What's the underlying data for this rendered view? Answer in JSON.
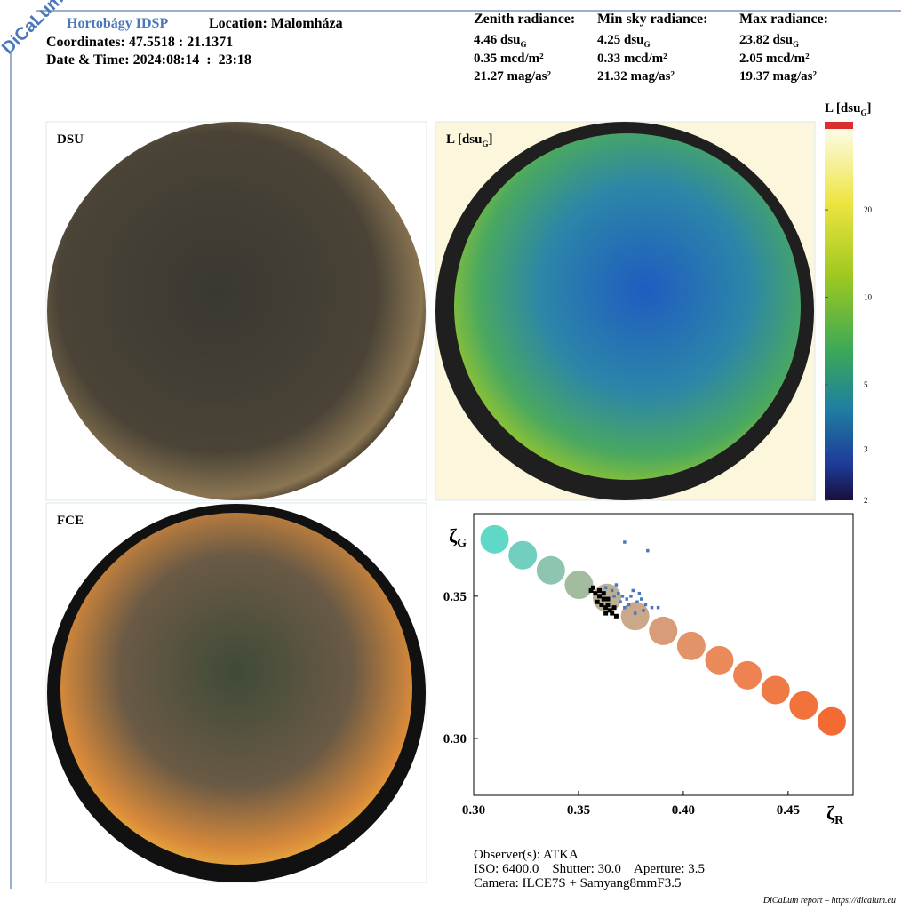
{
  "header": {
    "brand": "DiCaLum",
    "site": "Hortobágy IDSP",
    "location": "Location: Malomháza",
    "coordinates": "Coordinates: 47.5518 : 21.1371",
    "datetime": "Date & Time: 2024:08:14  :  23:18"
  },
  "radiance": [
    {
      "title": "Zenith radiance:",
      "dsu": "4.46 dsu",
      "dsu_sub": "G",
      "mcd": "0.35 mcd/m²",
      "mag": "21.27 mag/as²"
    },
    {
      "title": "Min sky radiance:",
      "dsu": "4.25 dsu",
      "dsu_sub": "G",
      "mcd": "0.33 mcd/m²",
      "mag": "21.32 mag/as²"
    },
    {
      "title": "Max radiance:",
      "dsu": "23.82 dsu",
      "dsu_sub": "G",
      "mcd": "2.05 mcd/m²",
      "mag": "19.37 mag/as²"
    }
  ],
  "panels": {
    "dsu": "DSU",
    "lmap": [
      "L [dsu",
      "G",
      "]"
    ],
    "fce": "FCE"
  },
  "chart_data": [
    {
      "type": "colorbar",
      "title": [
        "L [dsu",
        "G",
        "]"
      ],
      "log_scale": true,
      "ylim": [
        2,
        38
      ],
      "yticks": [
        2,
        3,
        5,
        10,
        20
      ]
    },
    {
      "type": "scatter",
      "xlabel": "ζ",
      "xlabel_sub": "R",
      "ylabel": "ζ",
      "ylabel_sub": "G",
      "xlim": [
        0.3,
        0.481
      ],
      "ylim": [
        0.28,
        0.379
      ],
      "xticks": [
        {
          "value": 0.3,
          "label": "0.30"
        },
        0.35,
        {
          "value": 0.4,
          "label": "0.40"
        },
        0.45
      ],
      "yticks": [
        {
          "value": 0.3,
          "label": "0.30"
        },
        0.35
      ],
      "series": [
        {
          "marker": "circle",
          "x": [
            0.31,
            0.3234,
            0.3368,
            0.3502,
            0.3636,
            0.377,
            0.3904,
            0.4038,
            0.4172,
            0.4306,
            0.444,
            0.4574,
            0.4708
          ],
          "values": [
            0.37,
            0.3644,
            0.3591,
            0.354,
            0.3494,
            0.343,
            0.3378,
            0.3325,
            0.3275,
            0.3222,
            0.317,
            0.3116,
            0.306
          ],
          "colors": [
            "#5fd8c8",
            "#72cfc0",
            "#8dc5b0",
            "#a3bca0",
            "#bab197",
            "#cca88a",
            "#d89d78",
            "#e29367",
            "#ea8a5a",
            "#ee8250",
            "#f07a45",
            "#f2723c",
            "#f36a33"
          ]
        },
        {
          "marker": "square",
          "color": "#4a78c0",
          "x": [
            0.363,
            0.366,
            0.369,
            0.371,
            0.373,
            0.375,
            0.378,
            0.38,
            0.382,
            0.385,
            0.37,
            0.372,
            0.376,
            0.379,
            0.368,
            0.374,
            0.388,
            0.381,
            0.372,
            0.383,
            0.377,
            0.367
          ],
          "values": [
            0.353,
            0.352,
            0.351,
            0.35,
            0.349,
            0.35,
            0.348,
            0.349,
            0.347,
            0.346,
            0.348,
            0.346,
            0.352,
            0.351,
            0.354,
            0.347,
            0.346,
            0.345,
            0.369,
            0.366,
            0.344,
            0.35
          ]
        },
        {
          "marker": "square",
          "color": "#000000",
          "x": [
            0.356,
            0.358,
            0.36,
            0.362,
            0.359,
            0.361,
            0.363,
            0.365,
            0.364,
            0.366,
            0.367,
            0.362,
            0.357,
            0.36,
            0.364,
            0.368,
            0.363
          ],
          "values": [
            0.352,
            0.351,
            0.35,
            0.349,
            0.348,
            0.347,
            0.346,
            0.345,
            0.347,
            0.344,
            0.346,
            0.351,
            0.353,
            0.352,
            0.349,
            0.343,
            0.344
          ]
        }
      ]
    }
  ],
  "footer": {
    "observer": "Observer(s): ATKA",
    "settings": "ISO: 6400.0    Shutter: 30.0    Aperture: 3.5",
    "camera": "Camera: ILCE7S + Samyang8mmF3.5",
    "credit": "DiCaLum report – https://dicalum.eu"
  }
}
